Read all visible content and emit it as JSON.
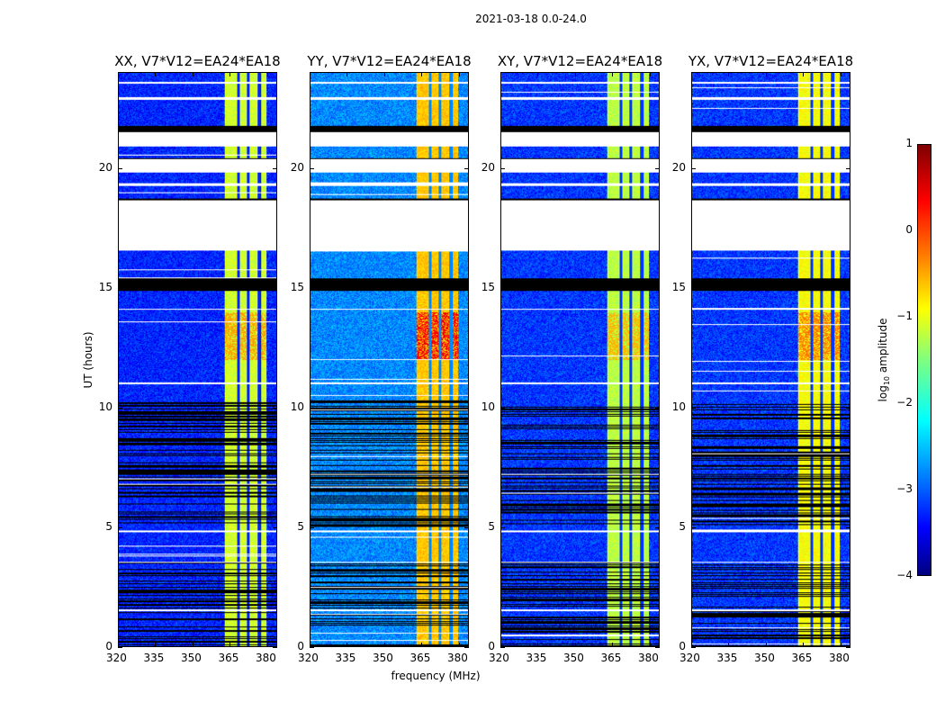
{
  "chart_data": {
    "type": "heatmap",
    "title": "2021-03-18 0.0-24.0",
    "xlabel": "frequency (MHz)",
    "ylabel": "UT (hours)",
    "xlim": [
      320,
      384
    ],
    "ylim": [
      0,
      24
    ],
    "xticks": [
      "320",
      "335",
      "350",
      "365",
      "380"
    ],
    "xtick_values": [
      320,
      335,
      350,
      365,
      380
    ],
    "yticks": [
      "0",
      "5",
      "10",
      "15",
      "20"
    ],
    "ytick_values": [
      0,
      5,
      10,
      15,
      20
    ],
    "panels": [
      {
        "title": "XX, V7*V12=EA24*EA18",
        "band_level": -1.1,
        "background_level": -3.2,
        "peak_level": -0.4
      },
      {
        "title": "YY, V7*V12=EA24*EA18",
        "band_level": -0.6,
        "background_level": -2.7,
        "peak_level": 0.4
      },
      {
        "title": "XY, V7*V12=EA24*EA18",
        "band_level": -1.2,
        "background_level": -3.1,
        "peak_level": -0.5
      },
      {
        "title": "YX, V7*V12=EA24*EA18",
        "band_level": -0.9,
        "background_level": -3.1,
        "peak_level": -0.2
      }
    ],
    "rfi_band_mhz": [
      363,
      380
    ],
    "rfi_dark_channels_mhz": [
      368.5,
      372.5,
      377
    ],
    "blank_intervals_hours": [
      [
        16.6,
        18.7
      ],
      [
        19.3,
        19.4
      ],
      [
        19.85,
        20.4
      ],
      [
        20.95,
        21.55
      ],
      [
        22.9,
        23.0
      ],
      [
        23.55,
        23.65
      ],
      [
        4.8,
        4.85
      ],
      [
        14.1,
        14.15
      ],
      [
        11.0,
        11.05
      ],
      [
        3.5,
        3.55
      ],
      [
        1.5,
        1.55
      ]
    ],
    "flagged_black_intervals_hours": [
      [
        0,
        3.5
      ],
      [
        5.0,
        10.3
      ],
      [
        14.9,
        15.4
      ],
      [
        18.7,
        18.75
      ],
      [
        20.4,
        20.45
      ],
      [
        21.55,
        21.8
      ]
    ],
    "colorbar": {
      "label": "log10 amplitude",
      "label_main": "log",
      "label_sub": "10",
      "label_rest": " amplitude",
      "range": [
        -4,
        1
      ],
      "ticks": [
        "−4",
        "−3",
        "−2",
        "−1",
        "0",
        "1"
      ],
      "tick_values": [
        -4,
        -3,
        -2,
        -1,
        0,
        1
      ],
      "colormap": "jet"
    }
  }
}
